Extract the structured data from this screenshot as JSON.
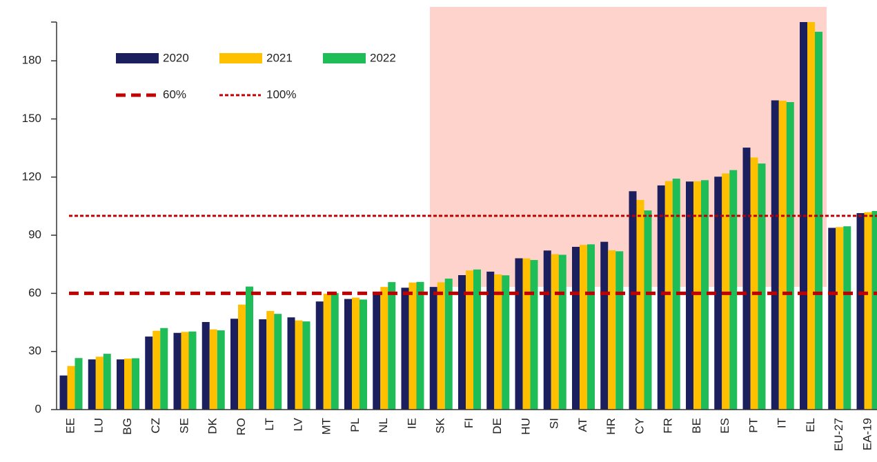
{
  "chart_data": {
    "type": "bar",
    "categories": [
      "EE",
      "LU",
      "BG",
      "CZ",
      "SE",
      "DK",
      "RO",
      "LT",
      "LV",
      "MT",
      "PL",
      "NL",
      "IE",
      "SK",
      "FI",
      "DE",
      "HU",
      "SI",
      "AT",
      "HR",
      "CY",
      "FR",
      "BE",
      "ES",
      "PT",
      "IT",
      "EL",
      "EU-27",
      "EA-19"
    ],
    "series": [
      {
        "name": "2020",
        "color": "#1b1f5e",
        "values": [
          17.6,
          25.9,
          25.9,
          37.7,
          39.6,
          45.2,
          46.9,
          46.6,
          47.6,
          55.8,
          57.1,
          60.1,
          62.9,
          63.3,
          69.4,
          71.2,
          78.1,
          82.1,
          84.0,
          86.6,
          112.7,
          115.7,
          117.7,
          120.2,
          135.2,
          159.6,
          200,
          93.8,
          101.4
        ]
      },
      {
        "name": "2021",
        "color": "#ffc000",
        "values": [
          22.5,
          27.3,
          26.3,
          40.7,
          40.1,
          41.4,
          54.2,
          50.9,
          46.0,
          59.8,
          57.8,
          63.3,
          65.6,
          65.7,
          71.8,
          69.8,
          78.0,
          80.2,
          85.0,
          82.2,
          108.2,
          117.9,
          117.8,
          121.9,
          130.1,
          159.4,
          200,
          94.2,
          101.9
        ]
      },
      {
        "name": "2022",
        "color": "#1fbd58",
        "values": [
          26.6,
          28.8,
          26.5,
          42.1,
          40.3,
          40.9,
          63.5,
          49.4,
          45.5,
          60.1,
          56.8,
          65.8,
          65.9,
          67.6,
          72.3,
          69.3,
          77.2,
          79.9,
          85.3,
          81.7,
          102.8,
          119.2,
          118.4,
          123.6,
          127.0,
          158.7,
          195,
          94.6,
          102.5
        ]
      }
    ],
    "reference_lines": [
      {
        "value": 60,
        "label": "60%"
      },
      {
        "value": 100,
        "label": "100%"
      }
    ],
    "ylim": [
      0,
      200
    ],
    "yticks": [
      0,
      30,
      60,
      90,
      120,
      150,
      180
    ]
  }
}
